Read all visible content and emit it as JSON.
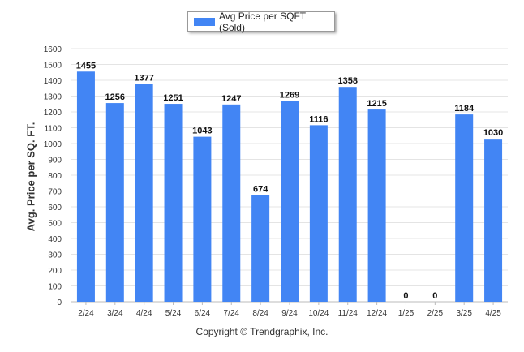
{
  "chart_data": {
    "type": "bar",
    "categories": [
      "2/24",
      "3/24",
      "4/24",
      "5/24",
      "6/24",
      "7/24",
      "8/24",
      "9/24",
      "10/24",
      "11/24",
      "12/24",
      "1/25",
      "2/25",
      "3/25",
      "4/25"
    ],
    "series": [
      {
        "name": "Avg Price per SQFT (Sold)",
        "values": [
          1455,
          1256,
          1377,
          1251,
          1043,
          1247,
          674,
          1269,
          1116,
          1358,
          1215,
          0,
          0,
          1184,
          1030
        ]
      }
    ],
    "ylabel": "Avg. Price per SQ. FT.",
    "ylim": [
      0,
      1600
    ],
    "yticks": [
      0,
      100,
      200,
      300,
      400,
      500,
      600,
      700,
      800,
      900,
      1000,
      1100,
      1200,
      1300,
      1400,
      1500,
      1600
    ],
    "grid": true,
    "legend_position": "top-center",
    "bar_color": "#4285f4"
  },
  "footer": {
    "copyright": "Copyright © Trendgraphix, Inc."
  }
}
